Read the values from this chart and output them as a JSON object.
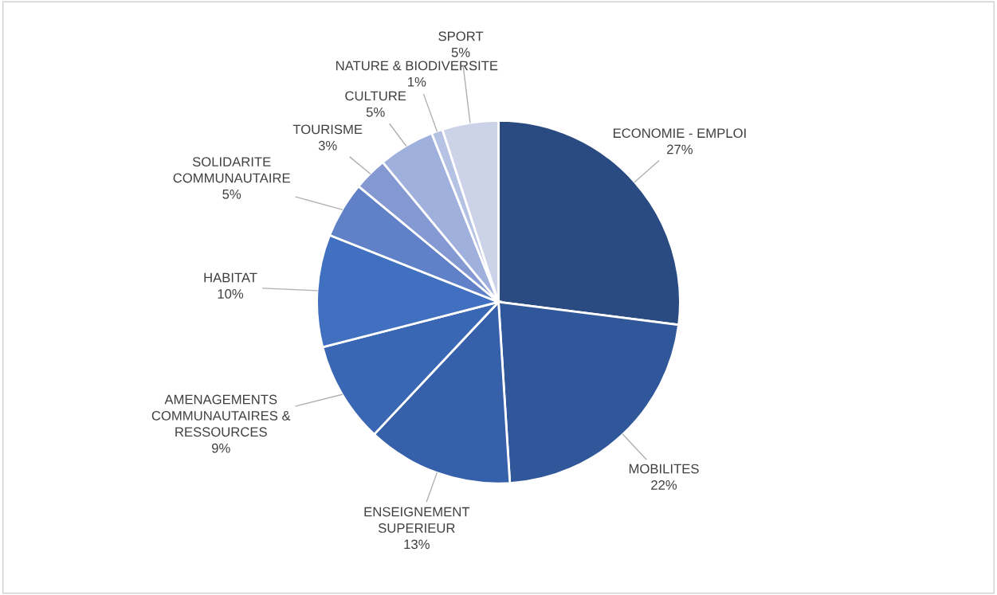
{
  "chart_data": {
    "type": "pie",
    "categories": [
      "ECONOMIE - EMPLOI",
      "MOBILITES",
      "ENSEIGNEMENT\nSUPERIEUR",
      "AMENAGEMENTS\nCOMMUNAUTAIRES &\nRESSOURCES",
      "HABITAT",
      "SOLIDARITE\nCOMMUNAUTAIRE",
      "TOURISME",
      "CULTURE",
      "NATURE & BIODIVERSITE",
      "SPORT"
    ],
    "values": [
      27,
      22,
      13,
      9,
      10,
      5,
      3,
      5,
      1,
      5
    ],
    "colors": [
      "#2a4a82",
      "#30579a",
      "#3660aa",
      "#3a67b4",
      "#4270c0",
      "#6080c8",
      "#8498d2",
      "#a0b0dc",
      "#b6c2e4",
      "#ccd3e8"
    ],
    "value_labels": [
      "27%",
      "22%",
      "13%",
      "9%",
      "10%",
      "5%",
      "3%",
      "5%",
      "1%",
      "5%"
    ]
  }
}
